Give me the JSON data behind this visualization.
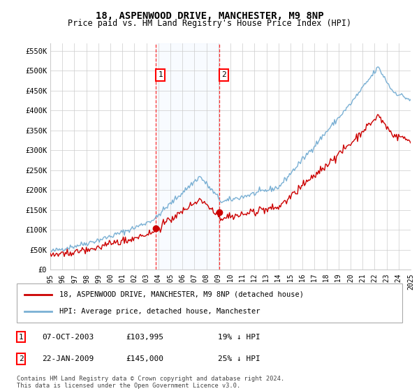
{
  "title": "18, ASPENWOOD DRIVE, MANCHESTER, M9 8NP",
  "subtitle": "Price paid vs. HM Land Registry's House Price Index (HPI)",
  "yticks": [
    0,
    50000,
    100000,
    150000,
    200000,
    250000,
    300000,
    350000,
    400000,
    450000,
    500000,
    550000
  ],
  "ytick_labels": [
    "£0",
    "£50K",
    "£100K",
    "£150K",
    "£200K",
    "£250K",
    "£300K",
    "£350K",
    "£400K",
    "£450K",
    "£500K",
    "£550K"
  ],
  "xmin": 1995,
  "xmax": 2025,
  "xticks": [
    1995,
    1996,
    1997,
    1998,
    1999,
    2000,
    2001,
    2002,
    2003,
    2004,
    2005,
    2006,
    2007,
    2008,
    2009,
    2010,
    2011,
    2012,
    2013,
    2014,
    2015,
    2016,
    2017,
    2018,
    2019,
    2020,
    2021,
    2022,
    2023,
    2024,
    2025
  ],
  "sale1_x": 2003.77,
  "sale1_y": 103995,
  "sale1_label": "1",
  "sale1_date": "07-OCT-2003",
  "sale1_price": "£103,995",
  "sale1_hpi": "19% ↓ HPI",
  "sale2_x": 2009.06,
  "sale2_y": 145000,
  "sale2_label": "2",
  "sale2_date": "22-JAN-2009",
  "sale2_price": "£145,000",
  "sale2_hpi": "25% ↓ HPI",
  "property_color": "#cc0000",
  "hpi_color": "#7ab0d4",
  "hpi_shade_color": "#ddeeff",
  "legend_property": "18, ASPENWOOD DRIVE, MANCHESTER, M9 8NP (detached house)",
  "legend_hpi": "HPI: Average price, detached house, Manchester",
  "footer": "Contains HM Land Registry data © Crown copyright and database right 2024.\nThis data is licensed under the Open Government Licence v3.0.",
  "background_color": "#ffffff",
  "grid_color": "#cccccc"
}
